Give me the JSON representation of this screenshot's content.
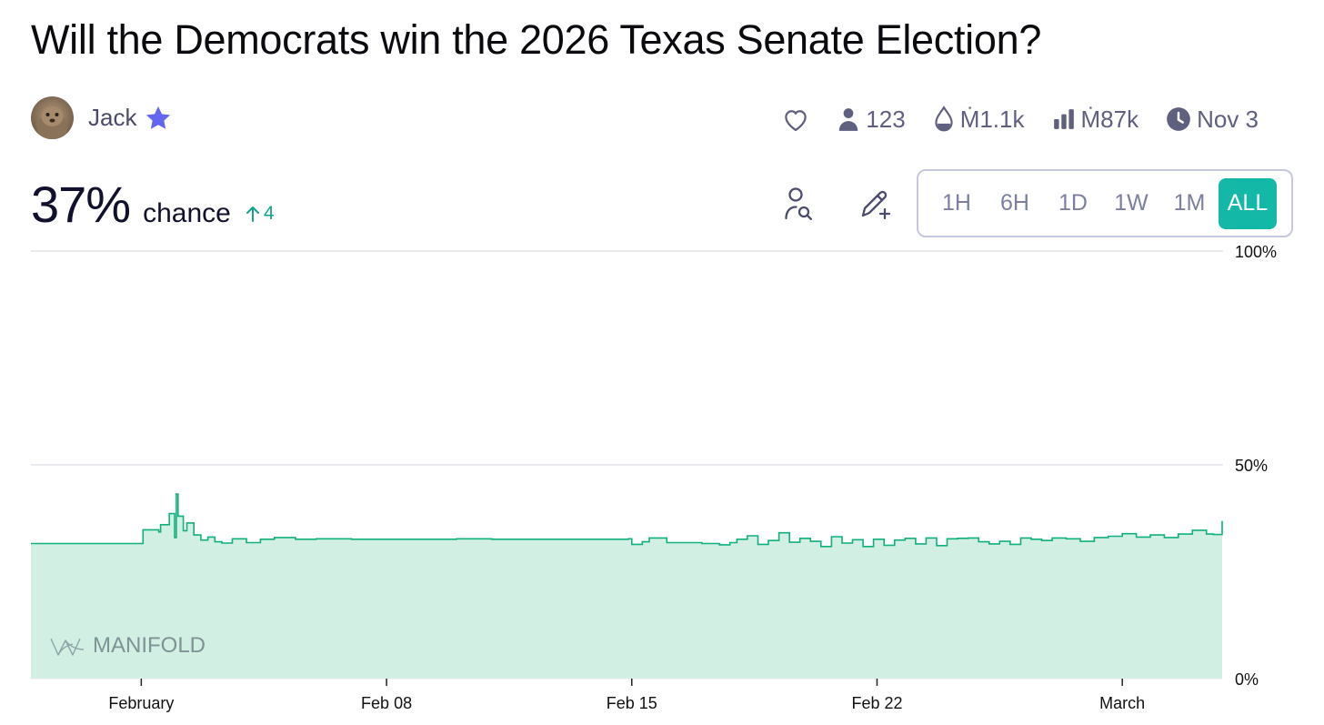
{
  "market": {
    "title": "Will the Democrats win the 2026 Texas Senate Election?",
    "author": "Jack",
    "stats": {
      "traders": "123",
      "liquidity": "Ṁ1.1k",
      "volume": "Ṁ87k",
      "close_date": "Nov 3"
    },
    "probability": "37%",
    "probability_label": "chance",
    "change": "4"
  },
  "icons": {
    "verified": "star-icon",
    "like": "heart-icon",
    "traders": "user-icon",
    "liquidity": "droplet-icon",
    "volume": "bar-chart-icon",
    "close": "clock-icon",
    "search_user": "user-search-icon",
    "edit": "pencil-plus-icon"
  },
  "colors": {
    "accent": "#14b8a6",
    "line": "#11b07c",
    "area": "#d1f0e3",
    "star": "#6366f1",
    "muted": "#5f5f80"
  },
  "range_buttons": [
    "1H",
    "6H",
    "1D",
    "1W",
    "1M",
    "ALL"
  ],
  "range_selected": "ALL",
  "watermark": "MANIFOLD",
  "chart_data": {
    "type": "area",
    "ylim": [
      0,
      100
    ],
    "y_ticks": [
      "0%",
      "50%",
      "100%"
    ],
    "x_ticks": [
      "February",
      "Feb 08",
      "Feb 15",
      "Feb 22",
      "March"
    ],
    "x_tick_days": [
      0,
      7,
      14,
      21,
      28
    ],
    "x_range_days": [
      -3.15,
      30.85
    ],
    "grid": "horizontal",
    "series": [
      {
        "x_days": [
          -3.15,
          0.0,
          0.05,
          0.5,
          0.55,
          0.8,
          0.95,
          1.0,
          1.05,
          1.2,
          1.3,
          1.5,
          1.7,
          1.9,
          2.1,
          2.3,
          2.6,
          3.0,
          3.4,
          3.8,
          4.4,
          5.0,
          6.0,
          7.0,
          7.5,
          8.0,
          8.5,
          9.0,
          10.0,
          11.0,
          12.0,
          12.5,
          13.0,
          13.9,
          14.0,
          14.3,
          14.5,
          15.0,
          16.0,
          16.5,
          16.8,
          17.0,
          17.3,
          17.6,
          17.9,
          18.2,
          18.5,
          18.8,
          19.1,
          19.4,
          19.7,
          20.0,
          20.3,
          20.6,
          20.9,
          21.2,
          21.5,
          21.8,
          22.1,
          22.4,
          22.7,
          23.0,
          23.3,
          23.6,
          23.9,
          24.2,
          24.5,
          24.8,
          25.1,
          25.4,
          25.7,
          26.0,
          26.4,
          26.8,
          27.2,
          27.6,
          28.0,
          28.4,
          28.8,
          29.2,
          29.6,
          30.0,
          30.4,
          30.6,
          30.85
        ],
        "y": [
          31.6,
          31.6,
          34.8,
          34.3,
          36.0,
          38.6,
          33.0,
          43.2,
          38.0,
          34.6,
          36.4,
          33.6,
          32.4,
          33.1,
          32.0,
          31.7,
          32.7,
          31.8,
          32.6,
          33.0,
          32.6,
          32.7,
          32.6,
          32.6,
          32.6,
          32.6,
          32.6,
          32.7,
          32.6,
          32.6,
          32.6,
          32.6,
          32.6,
          32.7,
          31.4,
          32.0,
          32.9,
          31.8,
          31.6,
          31.3,
          31.8,
          32.6,
          33.4,
          31.4,
          32.3,
          34.1,
          31.9,
          32.8,
          32.1,
          30.9,
          33.2,
          31.7,
          32.5,
          30.9,
          32.6,
          31.2,
          32.4,
          32.8,
          31.5,
          32.9,
          31.1,
          32.7,
          32.8,
          32.9,
          32.0,
          31.5,
          32.1,
          31.4,
          32.9,
          32.6,
          32.3,
          32.9,
          32.7,
          32.1,
          33.0,
          33.3,
          33.9,
          33.1,
          33.6,
          33.0,
          33.8,
          34.7,
          33.8,
          33.7,
          36.9
        ]
      }
    ]
  }
}
